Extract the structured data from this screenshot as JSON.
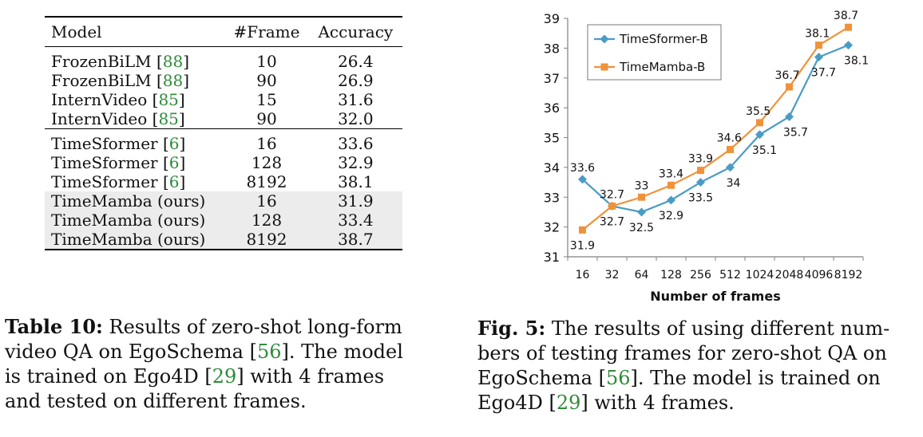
{
  "table": {
    "headers": {
      "model": "Model",
      "frames": "#Frame",
      "accuracy": "Accuracy"
    },
    "rows": [
      {
        "model": "FrozenBiLM",
        "ref": "88",
        "frames": "10",
        "accuracy": "26.4"
      },
      {
        "model": "FrozenBiLM",
        "ref": "88",
        "frames": "90",
        "accuracy": "26.9"
      },
      {
        "model": "InternVideo",
        "ref": "85",
        "frames": "15",
        "accuracy": "31.6"
      },
      {
        "model": "InternVideo",
        "ref": "85",
        "frames": "90",
        "accuracy": "32.0"
      },
      {
        "model": "TimeSformer",
        "ref": "6",
        "frames": "16",
        "accuracy": "33.6"
      },
      {
        "model": "TimeSformer",
        "ref": "6",
        "frames": "128",
        "accuracy": "32.9"
      },
      {
        "model": "TimeSformer",
        "ref": "6",
        "frames": "8192",
        "accuracy": "38.1"
      },
      {
        "model": "TimeMamba (ours)",
        "ref": "",
        "frames": "16",
        "accuracy": "31.9"
      },
      {
        "model": "TimeMamba (ours)",
        "ref": "",
        "frames": "128",
        "accuracy": "33.4"
      },
      {
        "model": "TimeMamba (ours)",
        "ref": "",
        "frames": "8192",
        "accuracy": "38.7"
      }
    ]
  },
  "table_caption": {
    "label": "Table 10:",
    "lines": [
      [
        " Results of zero-shot long-form"
      ],
      [
        "video QA on EgoSchema [",
        "56",
        "]. The model"
      ],
      [
        "is trained on Ego4D [",
        "29",
        "] with 4 frames"
      ],
      [
        "and tested on different frames."
      ]
    ]
  },
  "figure_caption": {
    "label": "Fig. 5:",
    "lines": [
      [
        " The results of using different num-"
      ],
      [
        "bers of testing frames for zero-shot QA on"
      ],
      [
        "EgoSchema [",
        "56",
        "]. The model is trained on"
      ],
      [
        "Ego4D [",
        "29",
        "] with 4 frames."
      ]
    ]
  },
  "colors": {
    "ref_green": "#2e8b3a",
    "series_blue": "#4a9cc4",
    "series_orange": "#f0923a"
  },
  "chart_data": {
    "type": "line",
    "categories": [
      "16",
      "32",
      "64",
      "128",
      "256",
      "512",
      "1024",
      "2048",
      "4096",
      "8192"
    ],
    "series": [
      {
        "name": "TimeSformer-B",
        "values": [
          33.6,
          32.7,
          32.5,
          32.9,
          33.5,
          34.0,
          35.1,
          35.7,
          37.7,
          38.1
        ],
        "labels": [
          "33.6",
          "32.7",
          "32.5",
          "32.9",
          "33.5",
          "34",
          "35.1",
          "35.7",
          "37.7",
          "38.1"
        ]
      },
      {
        "name": "TimeMamba-B",
        "values": [
          31.9,
          32.7,
          33.0,
          33.4,
          33.9,
          34.6,
          35.5,
          36.7,
          38.1,
          38.7
        ],
        "labels": [
          "31.9",
          "32.7",
          "33",
          "33.4",
          "33.9",
          "34.6",
          "35.5",
          "36.7",
          "38.1",
          "38.7"
        ]
      }
    ],
    "xlabel": "Number of frames",
    "ylabel": "",
    "ylim": [
      31,
      39
    ],
    "yticks": [
      "31",
      "32",
      "33",
      "34",
      "35",
      "36",
      "37",
      "38",
      "39"
    ],
    "grid": false,
    "legend": "top-left"
  }
}
